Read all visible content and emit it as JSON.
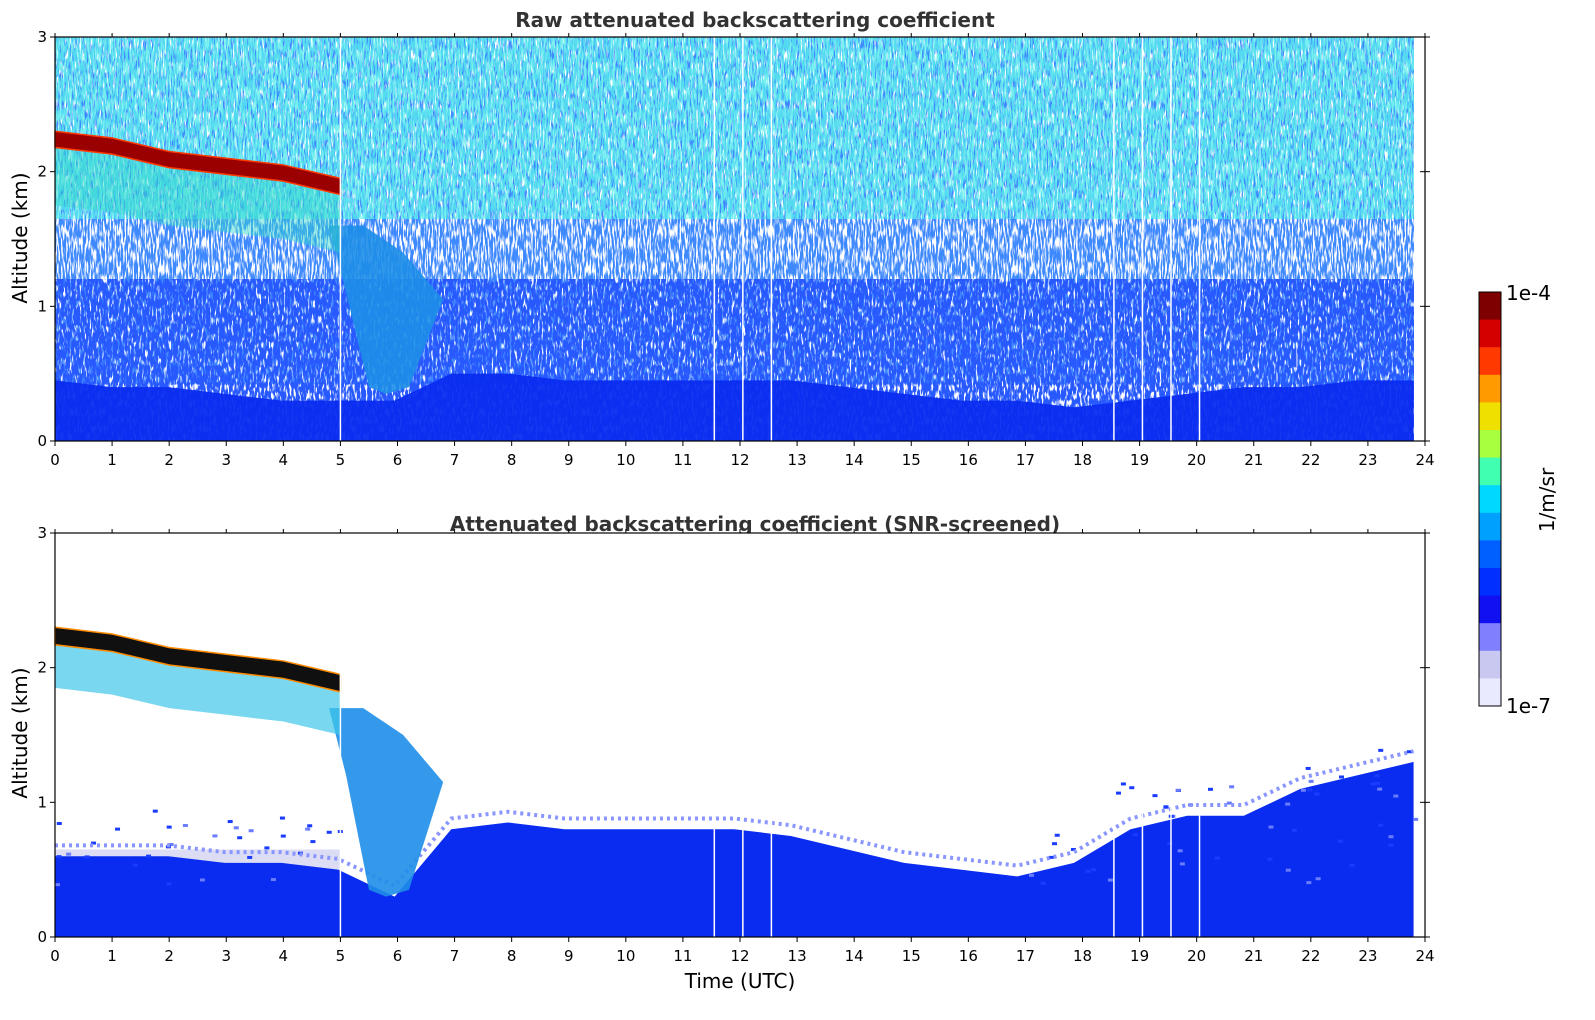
{
  "chart_data": [
    {
      "type": "heatmap",
      "title": "Raw attenuated backscattering coefficient",
      "xlabel": "",
      "ylabel": "Altitude (km)",
      "xlim": [
        0,
        24
      ],
      "ylim": [
        0,
        3
      ],
      "x_ticks": [
        "0",
        "1",
        "2",
        "3",
        "4",
        "5",
        "6",
        "7",
        "8",
        "9",
        "10",
        "11",
        "12",
        "13",
        "14",
        "15",
        "16",
        "17",
        "18",
        "19",
        "20",
        "21",
        "22",
        "23",
        "24"
      ],
      "y_ticks": [
        "0",
        "1",
        "2",
        "3"
      ],
      "data_end_hour": 23.8,
      "missing_profiles_hours": [
        5.0,
        11.55,
        12.05,
        12.55,
        18.55,
        19.05,
        19.55,
        20.05
      ],
      "features": [
        {
          "kind": "cloud_layer",
          "start_hour": 0,
          "end_hour": 5.0,
          "top_km": [
            2.3,
            2.25,
            2.15,
            2.1,
            2.05,
            1.95
          ],
          "value_level": "1e-4"
        },
        {
          "kind": "aerosol_plume",
          "start_hour": 4.8,
          "end_hour": 6.8,
          "bottom_km": 0.35,
          "top_km": 1.6
        },
        {
          "kind": "boundary_layer",
          "start_hour": 0,
          "end_hour": 23.8,
          "top_km": [
            0.45,
            0.4,
            0.4,
            0.35,
            0.3,
            0.3,
            0.3,
            0.5,
            0.5,
            0.45,
            0.45,
            0.45,
            0.45,
            0.45,
            0.4,
            0.35,
            0.3,
            0.3,
            0.25,
            0.3,
            0.35,
            0.4,
            0.4,
            0.45,
            0.45
          ]
        },
        {
          "kind": "noise",
          "start_hour": 0,
          "end_hour": 23.8,
          "bottom_km": 0.5,
          "top_km": 3.0
        }
      ]
    },
    {
      "type": "heatmap",
      "title": "Attenuated backscattering coefficient (SNR-screened)",
      "xlabel": "Time (UTC)",
      "ylabel": "Altitude (km)",
      "xlim": [
        0,
        24
      ],
      "ylim": [
        0,
        3
      ],
      "x_ticks": [
        "0",
        "1",
        "2",
        "3",
        "4",
        "5",
        "6",
        "7",
        "8",
        "9",
        "10",
        "11",
        "12",
        "13",
        "14",
        "15",
        "16",
        "17",
        "18",
        "19",
        "20",
        "21",
        "22",
        "23",
        "24"
      ],
      "y_ticks": [
        "0",
        "1",
        "2",
        "3"
      ],
      "data_end_hour": 23.8,
      "missing_profiles_hours": [
        5.0,
        11.55,
        12.05,
        12.55,
        18.55,
        19.05,
        19.55,
        20.05
      ],
      "features": [
        {
          "kind": "cloud_layer",
          "start_hour": 0,
          "end_hour": 5.0,
          "top_km": [
            2.3,
            2.25,
            2.15,
            2.1,
            2.05,
            1.95
          ],
          "value_level": "saturated"
        },
        {
          "kind": "aerosol_plume",
          "start_hour": 4.8,
          "end_hour": 6.8,
          "bottom_km": 0.3,
          "top_km": 1.7
        },
        {
          "kind": "boundary_layer",
          "start_hour": 0,
          "end_hour": 23.8,
          "top_km": [
            0.6,
            0.6,
            0.6,
            0.55,
            0.55,
            0.5,
            0.3,
            0.8,
            0.85,
            0.8,
            0.8,
            0.8,
            0.8,
            0.75,
            0.65,
            0.55,
            0.5,
            0.45,
            0.55,
            0.8,
            0.9,
            0.9,
            1.1,
            1.2,
            1.3
          ]
        }
      ]
    }
  ],
  "colorbar": {
    "label": "1/m/sr",
    "max_label": "1e-4",
    "min_label": "1e-7",
    "colors": [
      "#7f0000",
      "#d40000",
      "#ff3a00",
      "#ff9a00",
      "#f0e000",
      "#a8ff40",
      "#40ffb0",
      "#00d8ff",
      "#00a0ff",
      "#0060ff",
      "#0030ff",
      "#1010f0",
      "#8080ff",
      "#c8c8f0",
      "#eaeaff"
    ]
  }
}
